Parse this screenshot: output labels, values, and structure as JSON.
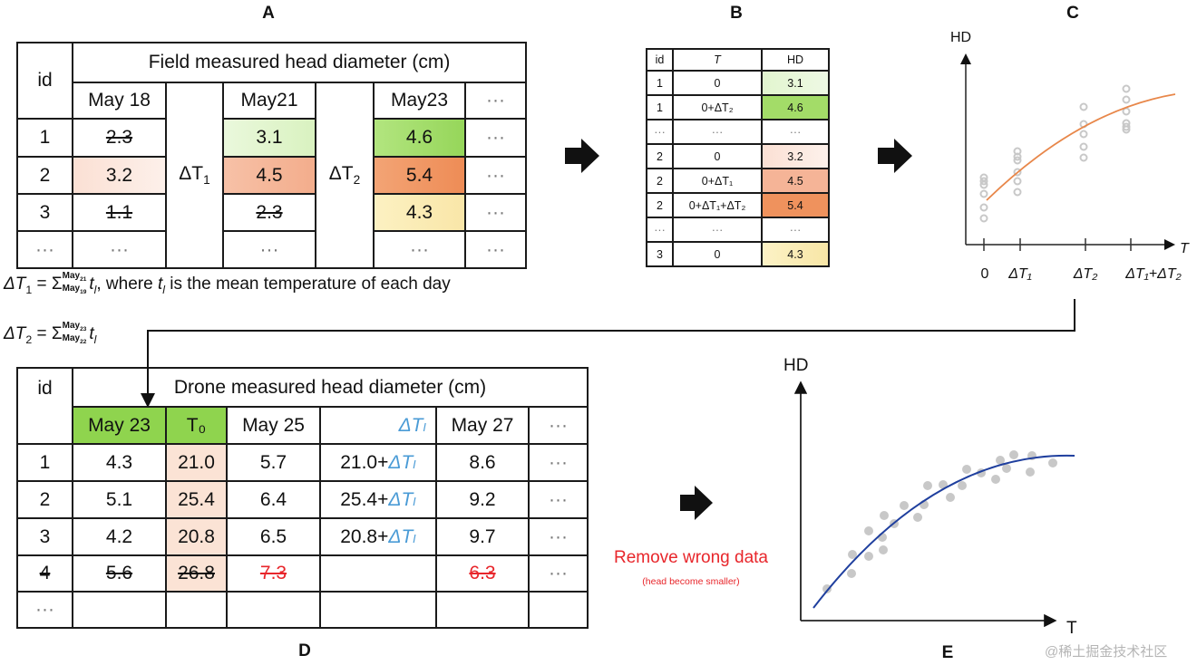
{
  "panel_labels": {
    "a": "A",
    "b": "B",
    "c": "C",
    "d": "D",
    "e": "E"
  },
  "table_a": {
    "id_header": "id",
    "title": "Field measured head diameter (cm)",
    "dates": [
      "May 18",
      "May21",
      "May23",
      "···"
    ],
    "delta1": {
      "base": "ΔT",
      "sub": "1"
    },
    "delta2": {
      "base": "ΔT",
      "sub": "2"
    },
    "rows": [
      {
        "id": "1",
        "may18": "2.3",
        "may21": "3.1",
        "may23": "4.6",
        "more": "···"
      },
      {
        "id": "2",
        "may18": "3.2",
        "may21": "4.5",
        "may23": "5.4",
        "more": "···"
      },
      {
        "id": "3",
        "may18": "1.1",
        "may21": "2.3",
        "may23": "4.3",
        "more": "···"
      },
      {
        "id": "···",
        "may18": "···",
        "may21": "···",
        "may23": "···",
        "more": "···"
      }
    ],
    "struck_values": [
      "2.3 (id 1, May 18)",
      "1.1 (id 3, May 18)",
      "2.3 (id 3, May21)"
    ]
  },
  "formulas": {
    "f1": {
      "lhs": "ΔT",
      "lhs_sub": "1",
      "eq": "=",
      "sigma": "Σ",
      "upper": "May",
      "upper_sub": "21",
      "lower": "May",
      "lower_sub": "19",
      "term": "t",
      "term_sub": "l",
      "rest": ", where ",
      "t2": "t",
      "t2_sub": "l",
      "rest2": " is the mean temperature of each day"
    },
    "f2": {
      "lhs": "ΔT",
      "lhs_sub": "2",
      "eq": "=",
      "sigma": "Σ",
      "upper": "May",
      "upper_sub": "23",
      "lower": "May",
      "lower_sub": "22",
      "term": "t",
      "term_sub": "l"
    }
  },
  "table_b": {
    "headers": [
      "id",
      "T",
      "HD"
    ],
    "rows": [
      {
        "id": "1",
        "t": "0",
        "hd": "3.1"
      },
      {
        "id": "1",
        "t": "0+ΔT₂",
        "hd": "4.6"
      },
      {
        "id": "···",
        "t": "···",
        "hd": "···"
      },
      {
        "id": "2",
        "t": "0",
        "hd": "3.2"
      },
      {
        "id": "2",
        "t": "0+ΔT₁",
        "hd": "4.5"
      },
      {
        "id": "2",
        "t": "0+ΔT₁+ΔT₂",
        "hd": "5.4"
      },
      {
        "id": "···",
        "t": "···",
        "hd": "···"
      },
      {
        "id": "3",
        "t": "0",
        "hd": "4.3"
      }
    ]
  },
  "chart_c": {
    "ylabel": "HD",
    "xlabel": "T",
    "ticks": [
      "0",
      "ΔT₁",
      "ΔT₂",
      "ΔT₁+ΔT₂"
    ],
    "curve_color": "#e8874a",
    "dot_color": "#c8c8c8"
  },
  "table_d": {
    "id_header": "id",
    "title": "Drone measured head diameter (cm)",
    "headers": [
      "May 23",
      "T₀",
      "May 25",
      "ΔTₗ",
      "May 27",
      "···"
    ],
    "rows": [
      {
        "id": "1",
        "may23": "4.3",
        "t0": "21.0",
        "may25": "5.7",
        "dt_base": "21.0+",
        "dt": "ΔTₗ",
        "may27": "8.6",
        "more": "···"
      },
      {
        "id": "2",
        "may23": "5.1",
        "t0": "25.4",
        "may25": "6.4",
        "dt_base": "25.4+",
        "dt": "ΔTₗ",
        "may27": "9.2",
        "more": "···"
      },
      {
        "id": "3",
        "may23": "4.2",
        "t0": "20.8",
        "may25": "6.5",
        "dt_base": "20.8+",
        "dt": "ΔTₗ",
        "may27": "9.7",
        "more": "···"
      },
      {
        "id": "4",
        "may23": "5.6",
        "t0": "26.8",
        "may25": "7.3",
        "dt_base": "",
        "dt": "",
        "may27": "6.3",
        "more": "···"
      },
      {
        "id": "···"
      }
    ]
  },
  "annotation": {
    "main": "Remove wrong data",
    "sub": "(head become smaller)",
    "color": "#e8262b"
  },
  "chart_e": {
    "ylabel": "HD",
    "xlabel": "T",
    "curve_color": "#1f3f9e",
    "dot_color": "#c8c8c8"
  },
  "watermark": "@稀土掘金技术社区",
  "colors": {
    "green_light": "#e2f5cf",
    "green": "#9ad85e",
    "green_header": "#8fd44e",
    "peach_light": "#fbe4da",
    "orange_mid": "#f5b497",
    "orange": "#f0955f",
    "yellow": "#fbefb8",
    "t0_column": "#fbe3d5"
  }
}
